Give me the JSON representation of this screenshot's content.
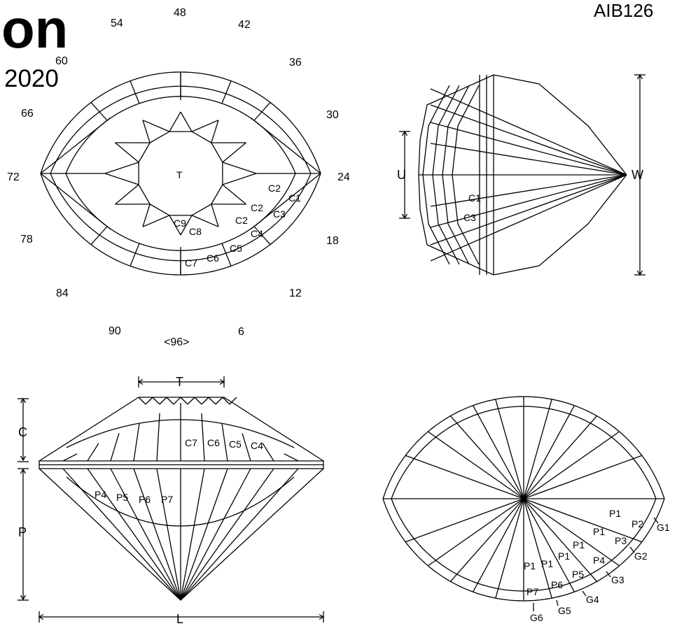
{
  "header": {
    "title_fragment": "on",
    "year": "2020",
    "design_id": "AIB126"
  },
  "index_wheel": {
    "top": [
      "54",
      "48",
      "42"
    ],
    "upper": [
      "60",
      "36"
    ],
    "mid_upper": [
      "66",
      "30"
    ],
    "middle": [
      "72",
      "24"
    ],
    "mid_lower": [
      "78",
      "18"
    ],
    "lower": [
      "84",
      "12"
    ],
    "bottom": [
      "90",
      "6"
    ],
    "center_bottom": "<96>"
  },
  "top_view": {
    "table_label": "T",
    "crown_labels": [
      "C1",
      "C2",
      "C3",
      "C2",
      "C4",
      "C2",
      "C5",
      "C6",
      "C7",
      "C8",
      "C9"
    ]
  },
  "end_view": {
    "labels": [
      "C1",
      "C3"
    ],
    "dim_u": "U",
    "dim_w": "W"
  },
  "side_view": {
    "dim_t": "T",
    "dim_c": "C",
    "dim_p": "P",
    "dim_l": "L",
    "crown_labels": [
      "C7",
      "C6",
      "C5",
      "C4"
    ],
    "pavilion_labels": [
      "P4",
      "P5",
      "P6",
      "P7"
    ]
  },
  "bottom_view": {
    "pavilion_labels": [
      "P1",
      "P2",
      "P1",
      "P3",
      "P1",
      "P1",
      "P4",
      "P1",
      "P1",
      "P5",
      "P7",
      "P6"
    ],
    "girdle_labels": [
      "G1",
      "G2",
      "G3",
      "G4",
      "G5",
      "G6"
    ]
  }
}
